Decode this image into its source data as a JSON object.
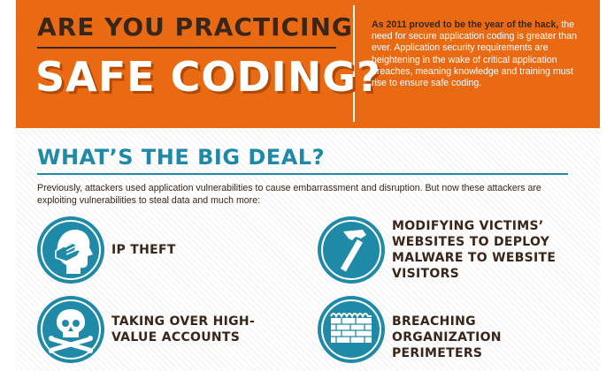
{
  "header": {
    "line1": "ARE YOU PRACTICING",
    "line2": "SAFE CODING?",
    "intro_bold": "As 2011 proved to be the year of the hack,",
    "intro_rest": "the need for secure application coding is greater than ever. Application security requirements are heightening in the wake of critical application breaches, meaning knowledge and training must rise to ensure safe coding."
  },
  "section": {
    "title": "WHAT’S THE BIG DEAL?",
    "body": "Previously, attackers used application vulnerabilities to cause embarrassment and disruption. But now these attackers are exploiting vulnerabilities to steal data and much more:"
  },
  "items": [
    {
      "label": "IP THEFT",
      "icon": "head-hand-icon"
    },
    {
      "label": "MODIFYING VICTIMS’ WEBSITES TO DEPLOY MALWARE TO WEBSITE VISITORS",
      "icon": "hammer-icon"
    },
    {
      "label": "TAKING OVER HIGH-VALUE ACCOUNTS",
      "icon": "skull-crossbones-icon"
    },
    {
      "label": "BREACHING ORGANIZATION PERIMETERS",
      "icon": "brick-wall-icon"
    }
  ],
  "colors": {
    "orange": "#ea6a14",
    "teal": "#1f8aa8",
    "brown": "#3a2618"
  }
}
